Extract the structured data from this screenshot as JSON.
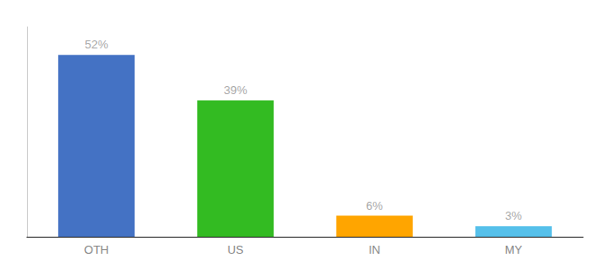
{
  "chart_data": {
    "type": "bar",
    "categories": [
      "OTH",
      "US",
      "IN",
      "MY"
    ],
    "values": [
      52,
      39,
      6,
      3
    ],
    "value_labels": [
      "52%",
      "39%",
      "6%",
      "3%"
    ],
    "colors": [
      "#4472C4",
      "#33BB22",
      "#FFA500",
      "#56C0EA"
    ],
    "ylim": [
      0,
      60
    ],
    "data_labels": true,
    "tick_labels": "x",
    "grid": false
  }
}
